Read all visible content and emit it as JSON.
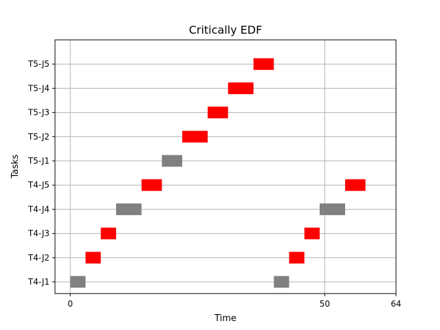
{
  "chart_data": {
    "type": "gantt",
    "title": "Critically EDF",
    "xlabel": "Time",
    "ylabel": "Tasks",
    "xlim": [
      -3,
      64
    ],
    "xticks": [
      0,
      50,
      64
    ],
    "grid": true,
    "categories": [
      "T4-J1",
      "T4-J2",
      "T4-J3",
      "T4-J4",
      "T4-J5",
      "T5-J1",
      "T5-J2",
      "T5-J3",
      "T5-J4",
      "T5-J5"
    ],
    "colors": {
      "high": "#ff0000",
      "low": "#808080"
    },
    "bars": [
      {
        "task": "T4-J1",
        "start": 0,
        "end": 3,
        "color": "low"
      },
      {
        "task": "T4-J1",
        "start": 40,
        "end": 43,
        "color": "low"
      },
      {
        "task": "T4-J2",
        "start": 3,
        "end": 6,
        "color": "high"
      },
      {
        "task": "T4-J2",
        "start": 43,
        "end": 46,
        "color": "high"
      },
      {
        "task": "T4-J3",
        "start": 6,
        "end": 9,
        "color": "high"
      },
      {
        "task": "T4-J3",
        "start": 46,
        "end": 49,
        "color": "high"
      },
      {
        "task": "T4-J4",
        "start": 9,
        "end": 14,
        "color": "low"
      },
      {
        "task": "T4-J4",
        "start": 49,
        "end": 54,
        "color": "low"
      },
      {
        "task": "T4-J5",
        "start": 14,
        "end": 18,
        "color": "high"
      },
      {
        "task": "T4-J5",
        "start": 54,
        "end": 58,
        "color": "high"
      },
      {
        "task": "T5-J1",
        "start": 18,
        "end": 22,
        "color": "low"
      },
      {
        "task": "T5-J2",
        "start": 22,
        "end": 27,
        "color": "high"
      },
      {
        "task": "T5-J3",
        "start": 27,
        "end": 31,
        "color": "high"
      },
      {
        "task": "T5-J4",
        "start": 31,
        "end": 36,
        "color": "high"
      },
      {
        "task": "T5-J5",
        "start": 36,
        "end": 40,
        "color": "high"
      }
    ]
  }
}
